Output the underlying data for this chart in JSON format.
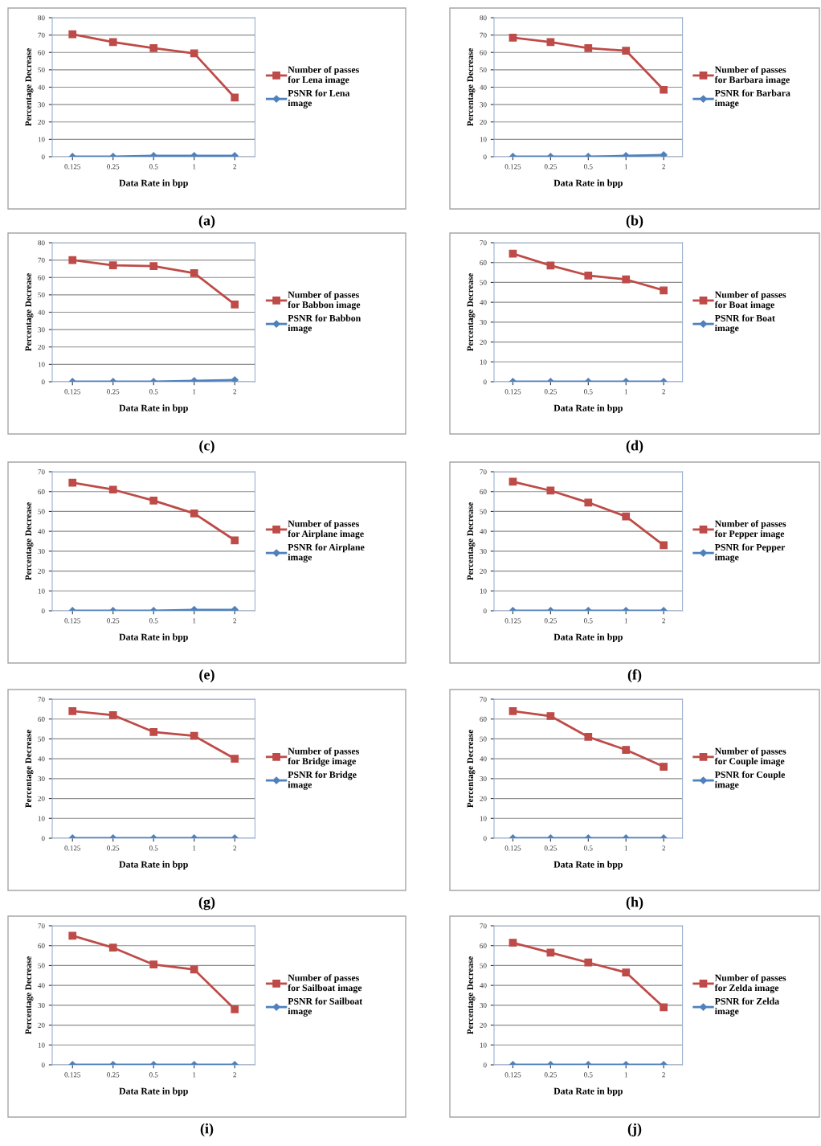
{
  "chart_data": [
    {
      "type": "line",
      "categories": [
        "0.125",
        "0.25",
        "0.5",
        "1",
        "2"
      ],
      "xlabel": "Data Rate in bpp",
      "ylabel": "Percentage Decrease",
      "ylim": [
        0,
        80
      ],
      "yticks": [
        0,
        10,
        20,
        30,
        40,
        50,
        60,
        70,
        80
      ],
      "grid": "y",
      "legend": "right",
      "annotations": [
        "(a)"
      ],
      "series": [
        {
          "name": "Number of passes for Lena image",
          "color": "#be4b48",
          "marker": "square",
          "values": [
            70.5,
            66,
            62.5,
            59.5,
            34
          ]
        },
        {
          "name": "PSNR for Lena image",
          "color": "#4f81bd",
          "marker": "diamond",
          "values": [
            0,
            0,
            0.5,
            0.5,
            0.5
          ]
        }
      ]
    },
    {
      "type": "line",
      "categories": [
        "0.125",
        "0.25",
        "0.5",
        "1",
        "2"
      ],
      "xlabel": "Data Rate in bpp",
      "ylabel": "Percentage Decrease",
      "ylim": [
        0,
        80
      ],
      "yticks": [
        0,
        10,
        20,
        30,
        40,
        50,
        60,
        70,
        80
      ],
      "grid": "y",
      "legend": "right",
      "annotations": [
        "(b)"
      ],
      "series": [
        {
          "name": "Number of passes for Barbara image",
          "color": "#be4b48",
          "marker": "square",
          "values": [
            68.5,
            66,
            62.5,
            61,
            38.5
          ]
        },
        {
          "name": "PSNR for Barbara image",
          "color": "#4f81bd",
          "marker": "diamond",
          "values": [
            0,
            0,
            0,
            0.5,
            1
          ]
        }
      ]
    },
    {
      "type": "line",
      "categories": [
        "0.125",
        "0.25",
        "0.5",
        "1",
        "2"
      ],
      "xlabel": "Data Rate in bpp",
      "ylabel": "Percentage Decrease",
      "ylim": [
        0,
        80
      ],
      "yticks": [
        0,
        10,
        20,
        30,
        40,
        50,
        60,
        70,
        80
      ],
      "grid": "y",
      "legend": "right",
      "annotations": [
        "(c)"
      ],
      "series": [
        {
          "name": "Number of passes for Babbon image",
          "color": "#be4b48",
          "marker": "square",
          "values": [
            70,
            67,
            66.5,
            62.5,
            44.5
          ]
        },
        {
          "name": "PSNR for Babbon image",
          "color": "#4f81bd",
          "marker": "diamond",
          "values": [
            0,
            0,
            0,
            0.5,
            1
          ]
        }
      ]
    },
    {
      "type": "line",
      "categories": [
        "0.125",
        "0.25",
        "0.5",
        "1",
        "2"
      ],
      "xlabel": "Data Rate in bpp",
      "ylabel": "Percentage Decrease",
      "ylim": [
        0,
        70
      ],
      "yticks": [
        0,
        10,
        20,
        30,
        40,
        50,
        60,
        70
      ],
      "grid": "y",
      "legend": "right",
      "annotations": [
        "(d)"
      ],
      "series": [
        {
          "name": "Number of passes for Boat image",
          "color": "#be4b48",
          "marker": "square",
          "values": [
            64.5,
            58.5,
            53.5,
            51.5,
            46
          ]
        },
        {
          "name": "PSNR for Boat image",
          "color": "#4f81bd",
          "marker": "diamond",
          "values": [
            0,
            0,
            0,
            0,
            0
          ]
        }
      ]
    },
    {
      "type": "line",
      "categories": [
        "0.125",
        "0.25",
        "0.5",
        "1",
        "2"
      ],
      "xlabel": "Data Rate in bpp",
      "ylabel": "Percentage Decrease",
      "ylim": [
        0,
        70
      ],
      "yticks": [
        0,
        10,
        20,
        30,
        40,
        50,
        60,
        70
      ],
      "grid": "y",
      "legend": "right",
      "annotations": [
        "(e)"
      ],
      "series": [
        {
          "name": "Number of passes for Airplane image",
          "color": "#be4b48",
          "marker": "square",
          "values": [
            64.5,
            61,
            55.5,
            49,
            35.5
          ]
        },
        {
          "name": "PSNR for Airplane image",
          "color": "#4f81bd",
          "marker": "diamond",
          "values": [
            0,
            0,
            0,
            0.5,
            0.5
          ]
        }
      ]
    },
    {
      "type": "line",
      "categories": [
        "0.125",
        "0.25",
        "0.5",
        "1",
        "2"
      ],
      "xlabel": "Data Rate in bpp",
      "ylabel": "Percentage Decrease",
      "ylim": [
        0,
        70
      ],
      "yticks": [
        0,
        10,
        20,
        30,
        40,
        50,
        60,
        70
      ],
      "grid": "y",
      "legend": "right",
      "annotations": [
        "(f)"
      ],
      "series": [
        {
          "name": "Number of passes for Pepper image",
          "color": "#be4b48",
          "marker": "square",
          "values": [
            65,
            60.5,
            54.5,
            47.5,
            33
          ]
        },
        {
          "name": "PSNR for Pepper image",
          "color": "#4f81bd",
          "marker": "diamond",
          "values": [
            0,
            0,
            0,
            0,
            0
          ]
        }
      ]
    },
    {
      "type": "line",
      "categories": [
        "0.125",
        "0.25",
        "0.5",
        "1",
        "2"
      ],
      "xlabel": "Data Rate in bpp",
      "ylabel": "Percentage Decrease",
      "ylim": [
        0,
        70
      ],
      "yticks": [
        0,
        10,
        20,
        30,
        40,
        50,
        60,
        70
      ],
      "grid": "y",
      "legend": "right",
      "annotations": [
        "(g)"
      ],
      "series": [
        {
          "name": "Number of passes for Bridge image",
          "color": "#be4b48",
          "marker": "square",
          "values": [
            64,
            62,
            53.5,
            51.5,
            40
          ]
        },
        {
          "name": "PSNR for Bridge image",
          "color": "#4f81bd",
          "marker": "diamond",
          "values": [
            0,
            0,
            0,
            0,
            0
          ]
        }
      ]
    },
    {
      "type": "line",
      "categories": [
        "0.125",
        "0.25",
        "0.5",
        "1",
        "2"
      ],
      "xlabel": "Data Rate in bpp",
      "ylabel": "Percentage Decrease",
      "ylim": [
        0,
        70
      ],
      "yticks": [
        0,
        10,
        20,
        30,
        40,
        50,
        60,
        70
      ],
      "grid": "y",
      "legend": "right",
      "annotations": [
        "(h)"
      ],
      "series": [
        {
          "name": "Number of passes for Couple image",
          "color": "#be4b48",
          "marker": "square",
          "values": [
            64,
            61.5,
            51,
            44.5,
            36
          ]
        },
        {
          "name": "PSNR for Couple image",
          "color": "#4f81bd",
          "marker": "diamond",
          "values": [
            0,
            0,
            0,
            0,
            0
          ]
        }
      ]
    },
    {
      "type": "line",
      "categories": [
        "0.125",
        "0.25",
        "0.5",
        "1",
        "2"
      ],
      "xlabel": "Data Rate in bpp",
      "ylabel": "Percentage Decrease",
      "ylim": [
        0,
        70
      ],
      "yticks": [
        0,
        10,
        20,
        30,
        40,
        50,
        60,
        70
      ],
      "grid": "y",
      "legend": "right",
      "annotations": [
        "(i)"
      ],
      "series": [
        {
          "name": "Number of passes for Sailboat image",
          "color": "#be4b48",
          "marker": "square",
          "values": [
            65,
            59,
            50.5,
            48,
            28
          ]
        },
        {
          "name": "PSNR for Sailboat image",
          "color": "#4f81bd",
          "marker": "diamond",
          "values": [
            0,
            0,
            0,
            0,
            0
          ]
        }
      ]
    },
    {
      "type": "line",
      "categories": [
        "0.125",
        "0.25",
        "0.5",
        "1",
        "2"
      ],
      "xlabel": "Data Rate in bpp",
      "ylabel": "Percentage Decrease",
      "ylim": [
        0,
        70
      ],
      "yticks": [
        0,
        10,
        20,
        30,
        40,
        50,
        60,
        70
      ],
      "grid": "y",
      "legend": "right",
      "annotations": [
        "(j)"
      ],
      "series": [
        {
          "name": "Number of passes for Zelda image",
          "color": "#be4b48",
          "marker": "square",
          "values": [
            61.5,
            56.5,
            51.5,
            46.5,
            29
          ]
        },
        {
          "name": "PSNR for Zelda image",
          "color": "#4f81bd",
          "marker": "diamond",
          "values": [
            0,
            0,
            0,
            0,
            0
          ]
        }
      ]
    }
  ]
}
